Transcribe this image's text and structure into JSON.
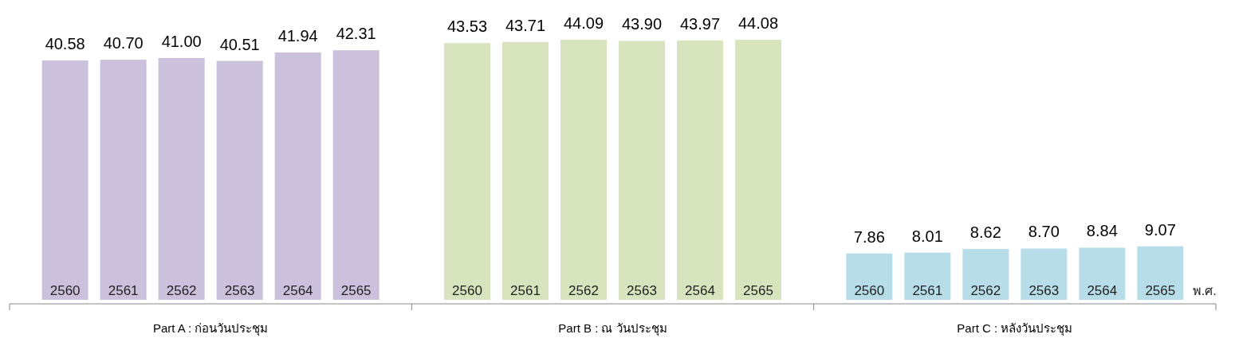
{
  "chart_data": [
    {
      "type": "bar",
      "xlabel": "Part A : ก่อนวันประชุม",
      "categories": [
        "2560",
        "2561",
        "2562",
        "2563",
        "2564",
        "2565"
      ],
      "values": [
        40.58,
        40.7,
        41.0,
        40.51,
        41.94,
        42.31
      ],
      "value_labels": [
        "40.58",
        "40.70",
        "41.00",
        "40.51",
        "41.94",
        "42.31"
      ],
      "color": "#cbc1dd"
    },
    {
      "type": "bar",
      "xlabel": "Part B : ณ วันประชุม",
      "categories": [
        "2560",
        "2561",
        "2562",
        "2563",
        "2564",
        "2565"
      ],
      "values": [
        43.53,
        43.71,
        44.09,
        43.9,
        43.97,
        44.08
      ],
      "value_labels": [
        "43.53",
        "43.71",
        "44.09",
        "43.90",
        "43.97",
        "44.08"
      ],
      "color": "#d8e4bd"
    },
    {
      "type": "bar",
      "xlabel": "Part C : หลังวันประชุม",
      "categories": [
        "2560",
        "2561",
        "2562",
        "2563",
        "2564",
        "2565"
      ],
      "values": [
        7.86,
        8.01,
        8.62,
        8.7,
        8.84,
        9.07
      ],
      "value_labels": [
        "7.86",
        "8.01",
        "8.62",
        "8.70",
        "8.84",
        "9.07"
      ],
      "color": "#b7dee8",
      "annotations": [
        "พ.ศ."
      ]
    }
  ]
}
